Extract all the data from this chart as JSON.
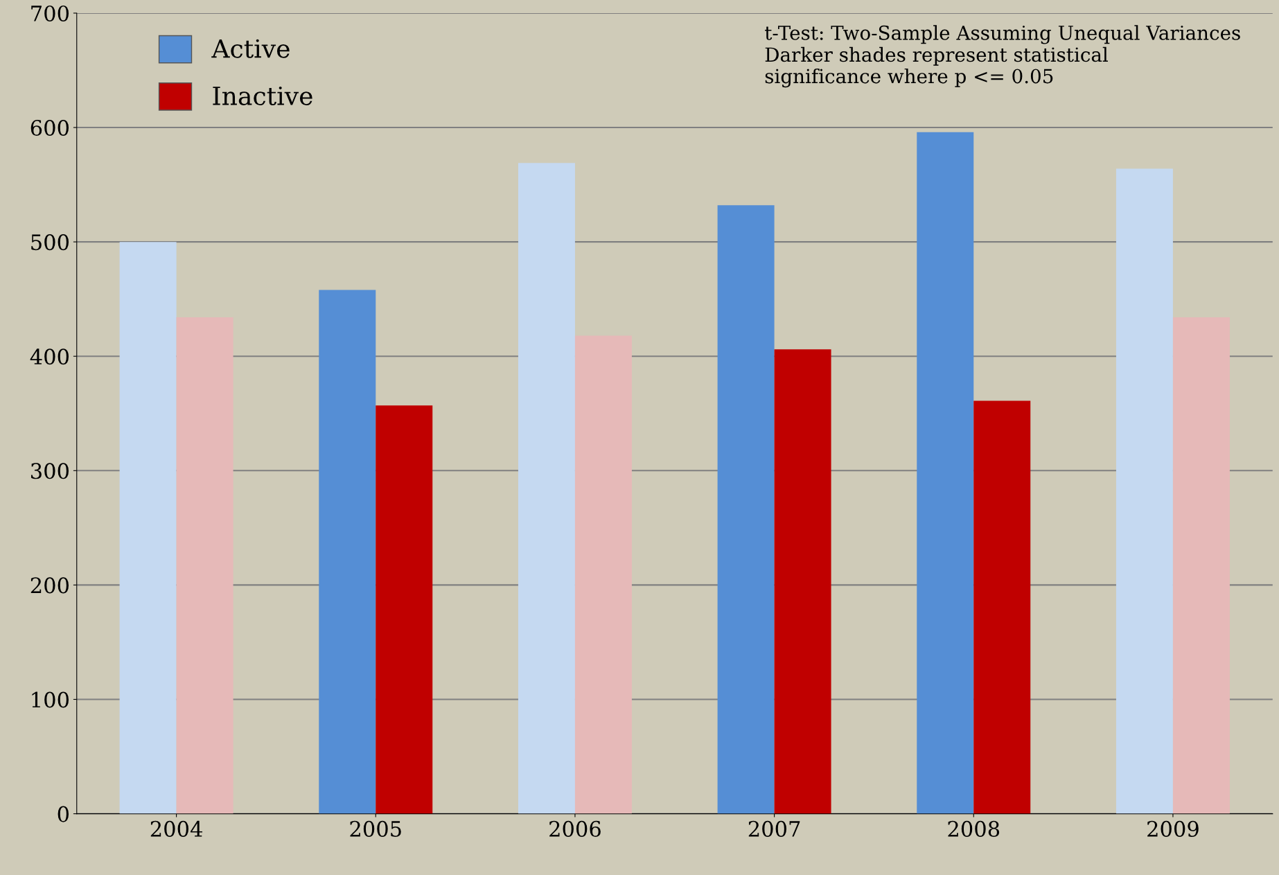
{
  "chart_data": {
    "type": "bar",
    "categories": [
      "2004",
      "2005",
      "2006",
      "2007",
      "2008",
      "2009"
    ],
    "series": [
      {
        "name": "Active",
        "color": "#558ed5",
        "colors": [
          "#c5d9f1",
          "#558ed5",
          "#c5d9f1",
          "#558ed5",
          "#558ed5",
          "#c5d9f1"
        ],
        "values": [
          500,
          458,
          569,
          532,
          596,
          564
        ]
      },
      {
        "name": "Inactive",
        "color": "#c00000",
        "colors": [
          "#e6b9b8",
          "#c00000",
          "#e6b9b8",
          "#c00000",
          "#c00000",
          "#e6b9b8"
        ],
        "values": [
          434,
          357,
          418,
          406,
          361,
          434
        ]
      }
    ],
    "ylim": [
      0,
      700
    ],
    "yticks": [
      0,
      100,
      200,
      300,
      400,
      500,
      600,
      700
    ],
    "grid": "y",
    "legend": "top left",
    "annotations": [
      "t-Test: Two-Sample Assuming Unequal Variances\nDarker shades represent statistical\nsignificance where p <= 0.05"
    ]
  }
}
